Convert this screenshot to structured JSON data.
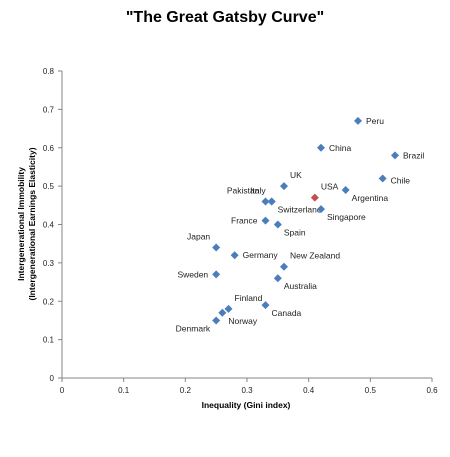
{
  "chart_data": {
    "type": "scatter",
    "title": "\"The Great Gatsby Curve\"",
    "xlabel": "Inequality (Gini index)",
    "ylabel_line1": "Intergenerational Immobility",
    "ylabel_line2": "(Intergenerational Earnings Elasticity)",
    "xlim": [
      0,
      0.6
    ],
    "ylim": [
      0,
      0.8
    ],
    "xticks": [
      "0",
      "0.1",
      "0.2",
      "0.3",
      "0.4",
      "0.5",
      "0.6"
    ],
    "yticks": [
      "0",
      "0.1",
      "0.2",
      "0.3",
      "0.4",
      "0.5",
      "0.6",
      "0.7",
      "0.8"
    ],
    "grid": false,
    "marker_color": "#4a7ebb",
    "highlight_color": "#c0504d",
    "highlight_label_color": "#e03030",
    "points": [
      {
        "label": "Peru",
        "x": 0.48,
        "y": 0.67,
        "label_pos": "right"
      },
      {
        "label": "China",
        "x": 0.42,
        "y": 0.6,
        "label_pos": "right"
      },
      {
        "label": "Brazil",
        "x": 0.54,
        "y": 0.58,
        "label_pos": "right"
      },
      {
        "label": "Chile",
        "x": 0.52,
        "y": 0.52,
        "label_pos": "right-below"
      },
      {
        "label": "UK",
        "x": 0.36,
        "y": 0.5,
        "label_pos": "above-right"
      },
      {
        "label": "Italy",
        "x": 0.34,
        "y": 0.46,
        "label_pos": "above-left"
      },
      {
        "label": "USA",
        "x": 0.41,
        "y": 0.47,
        "label_pos": "above-right",
        "highlight": true
      },
      {
        "label": "Argentina",
        "x": 0.46,
        "y": 0.49,
        "label_pos": "below-right"
      },
      {
        "label": "Pakistan",
        "x": 0.33,
        "y": 0.46,
        "label_pos": "above-left"
      },
      {
        "label": "Switzerland",
        "x": 0.34,
        "y": 0.46,
        "label_pos": "below-right"
      },
      {
        "label": "Singapore",
        "x": 0.42,
        "y": 0.44,
        "label_pos": "below-right"
      },
      {
        "label": "France",
        "x": 0.33,
        "y": 0.41,
        "label_pos": "left"
      },
      {
        "label": "Spain",
        "x": 0.35,
        "y": 0.4,
        "label_pos": "below-right"
      },
      {
        "label": "Japan",
        "x": 0.25,
        "y": 0.34,
        "label_pos": "above-left"
      },
      {
        "label": "Germany",
        "x": 0.28,
        "y": 0.32,
        "label_pos": "right"
      },
      {
        "label": "New Zealand",
        "x": 0.36,
        "y": 0.29,
        "label_pos": "above-right"
      },
      {
        "label": "Sweden",
        "x": 0.25,
        "y": 0.27,
        "label_pos": "left"
      },
      {
        "label": "Australia",
        "x": 0.35,
        "y": 0.26,
        "label_pos": "below-right"
      },
      {
        "label": "Finland",
        "x": 0.27,
        "y": 0.18,
        "label_pos": "above-right"
      },
      {
        "label": "Canada",
        "x": 0.33,
        "y": 0.19,
        "label_pos": "below-right"
      },
      {
        "label": "Norway",
        "x": 0.26,
        "y": 0.17,
        "label_pos": "below-right"
      },
      {
        "label": "Denmark",
        "x": 0.25,
        "y": 0.15,
        "label_pos": "below-left"
      }
    ]
  }
}
